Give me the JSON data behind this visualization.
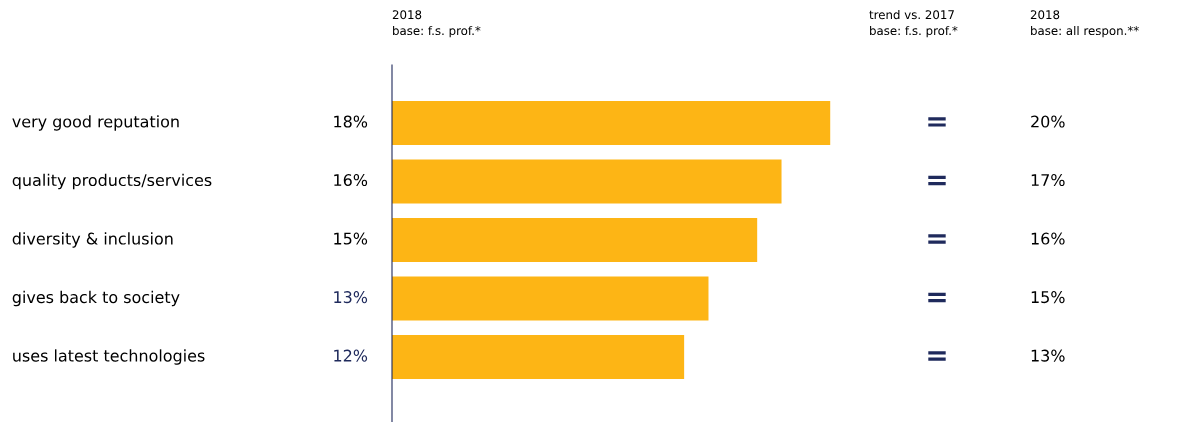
{
  "chart_data": {
    "type": "bar",
    "orientation": "horizontal",
    "categories": [
      "very good reputation",
      "quality products/services",
      "diversity & inclusion",
      "gives back to society",
      "uses latest technologies"
    ],
    "values": [
      18,
      16,
      15,
      13,
      12
    ],
    "color": "#fdb515",
    "value_labels": [
      "18%",
      "16%",
      "15%",
      "13%",
      "12%"
    ],
    "annotations": [
      "2018\nbase: f.s. prof.*",
      "trend vs. 2017\nbase: f.s. prof.*",
      "2018\nbase: all respon.**",
      "=",
      "=",
      "=",
      "=",
      "=",
      "20%",
      "17%",
      "16%",
      "15%",
      "13%"
    ]
  }
}
